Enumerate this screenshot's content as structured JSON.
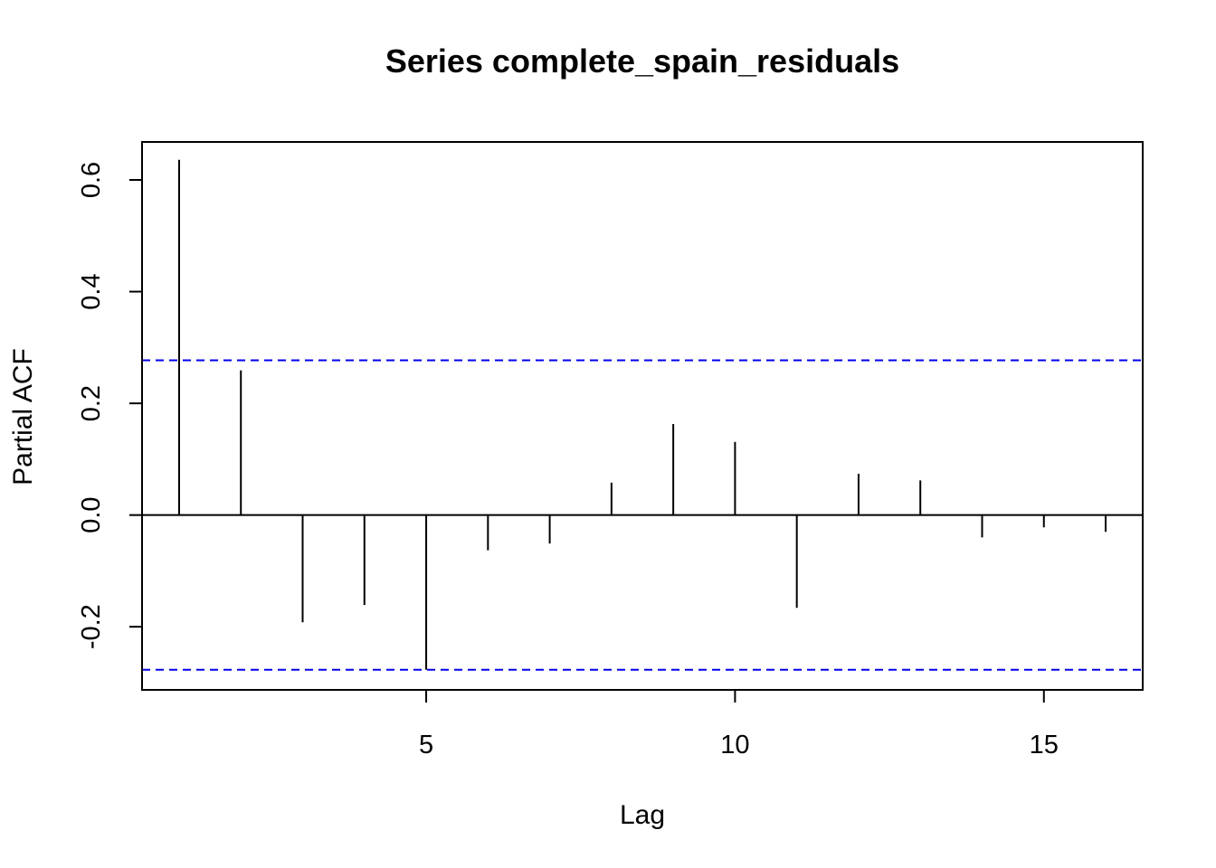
{
  "chart_data": {
    "type": "bar",
    "title": "Series  complete_spain_residuals",
    "xlabel": "Lag",
    "ylabel": "Partial ACF",
    "x": [
      1,
      2,
      3,
      4,
      5,
      6,
      7,
      8,
      9,
      10,
      11,
      12,
      13,
      14,
      15,
      16
    ],
    "values": [
      0.636,
      0.259,
      -0.192,
      -0.161,
      -0.277,
      -0.063,
      -0.051,
      0.058,
      0.163,
      0.131,
      -0.166,
      0.074,
      0.062,
      -0.04,
      -0.022,
      -0.03
    ],
    "xlim": [
      0.4,
      16.6
    ],
    "ylim": [
      -0.313,
      0.668
    ],
    "xticks": [
      5,
      10,
      15
    ],
    "xtick_labels": [
      "5",
      "10",
      "15"
    ],
    "yticks": [
      -0.2,
      0.0,
      0.2,
      0.4,
      0.6
    ],
    "ytick_labels": [
      "-0.2",
      "0.0",
      "0.2",
      "0.4",
      "0.6"
    ],
    "confidence_bounds": [
      0.277,
      -0.277
    ],
    "confidence_color": "#0000ee",
    "grid": false,
    "legend": "none"
  }
}
